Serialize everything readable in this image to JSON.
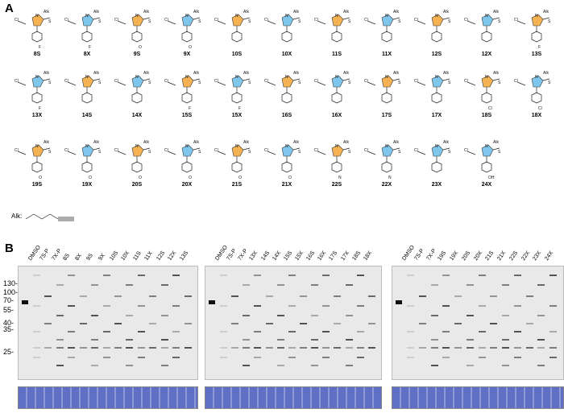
{
  "panel_a": {
    "letter": "A"
  },
  "panel_b": {
    "letter": "B"
  },
  "alk_key": "Alk:",
  "atoms": {
    "cl": "Cl",
    "n": "N",
    "s": "S",
    "alk": "Alk",
    "f": "F",
    "o": "O",
    "oh": "OH"
  },
  "compounds": [
    {
      "label": "8S",
      "sub": "F",
      "blue": false
    },
    {
      "label": "8X",
      "sub": "F",
      "blue": true
    },
    {
      "label": "9S",
      "sub": "O",
      "blue": false
    },
    {
      "label": "9X",
      "sub": "O",
      "blue": true
    },
    {
      "label": "10S",
      "sub": "",
      "blue": false
    },
    {
      "label": "10X",
      "sub": "",
      "blue": true
    },
    {
      "label": "11S",
      "sub": "",
      "blue": false
    },
    {
      "label": "11X",
      "sub": "",
      "blue": true
    },
    {
      "label": "12S",
      "sub": "",
      "blue": false
    },
    {
      "label": "12X",
      "sub": "",
      "blue": true
    },
    {
      "label": "13S",
      "sub": "F",
      "blue": false
    },
    {
      "label": "13X",
      "sub": "F",
      "blue": true
    },
    {
      "label": "14S",
      "sub": "",
      "blue": false
    },
    {
      "label": "14X",
      "sub": "",
      "blue": true
    },
    {
      "label": "15S",
      "sub": "F",
      "blue": false
    },
    {
      "label": "15X",
      "sub": "F",
      "blue": true
    },
    {
      "label": "16S",
      "sub": "",
      "blue": false
    },
    {
      "label": "16X",
      "sub": "",
      "blue": true
    },
    {
      "label": "17S",
      "sub": "",
      "blue": false
    },
    {
      "label": "17X",
      "sub": "",
      "blue": true
    },
    {
      "label": "18S",
      "sub": "Cl",
      "blue": false
    },
    {
      "label": "18X",
      "sub": "Cl",
      "blue": true
    },
    {
      "label": "19S",
      "sub": "O",
      "blue": false
    },
    {
      "label": "19X",
      "sub": "O",
      "blue": true
    },
    {
      "label": "20S",
      "sub": "O",
      "blue": false
    },
    {
      "label": "20X",
      "sub": "O",
      "blue": true
    },
    {
      "label": "21S",
      "sub": "O",
      "blue": false
    },
    {
      "label": "21X",
      "sub": "O",
      "blue": true
    },
    {
      "label": "22S",
      "sub": "N",
      "blue": false
    },
    {
      "label": "22X",
      "sub": "N",
      "blue": true
    },
    {
      "label": "23X",
      "sub": "",
      "blue": true
    },
    {
      "label": "24X",
      "sub": "OH",
      "blue": true
    }
  ],
  "mw_markers": [
    "130-",
    "100-",
    "70-",
    "55-",
    "40-",
    "35-",
    "25-"
  ],
  "gels": [
    {
      "lanes": [
        "DMSO",
        "7S-P",
        "7X-P",
        "8S",
        "8X",
        "9S",
        "9X",
        "10S",
        "10X",
        "11S",
        "11X",
        "12S",
        "12X",
        "13S"
      ]
    },
    {
      "lanes": [
        "DMSO",
        "7S-P",
        "7X-P",
        "13X",
        "14S",
        "14X",
        "15S",
        "15X",
        "16S",
        "16X",
        "17S",
        "17X",
        "18S",
        "18X"
      ]
    },
    {
      "lanes": [
        "DMSO",
        "7S-P",
        "7X-P",
        "19S",
        "19X",
        "20S",
        "20X",
        "21S",
        "21X",
        "22S",
        "22X",
        "23X",
        "24X"
      ]
    }
  ]
}
